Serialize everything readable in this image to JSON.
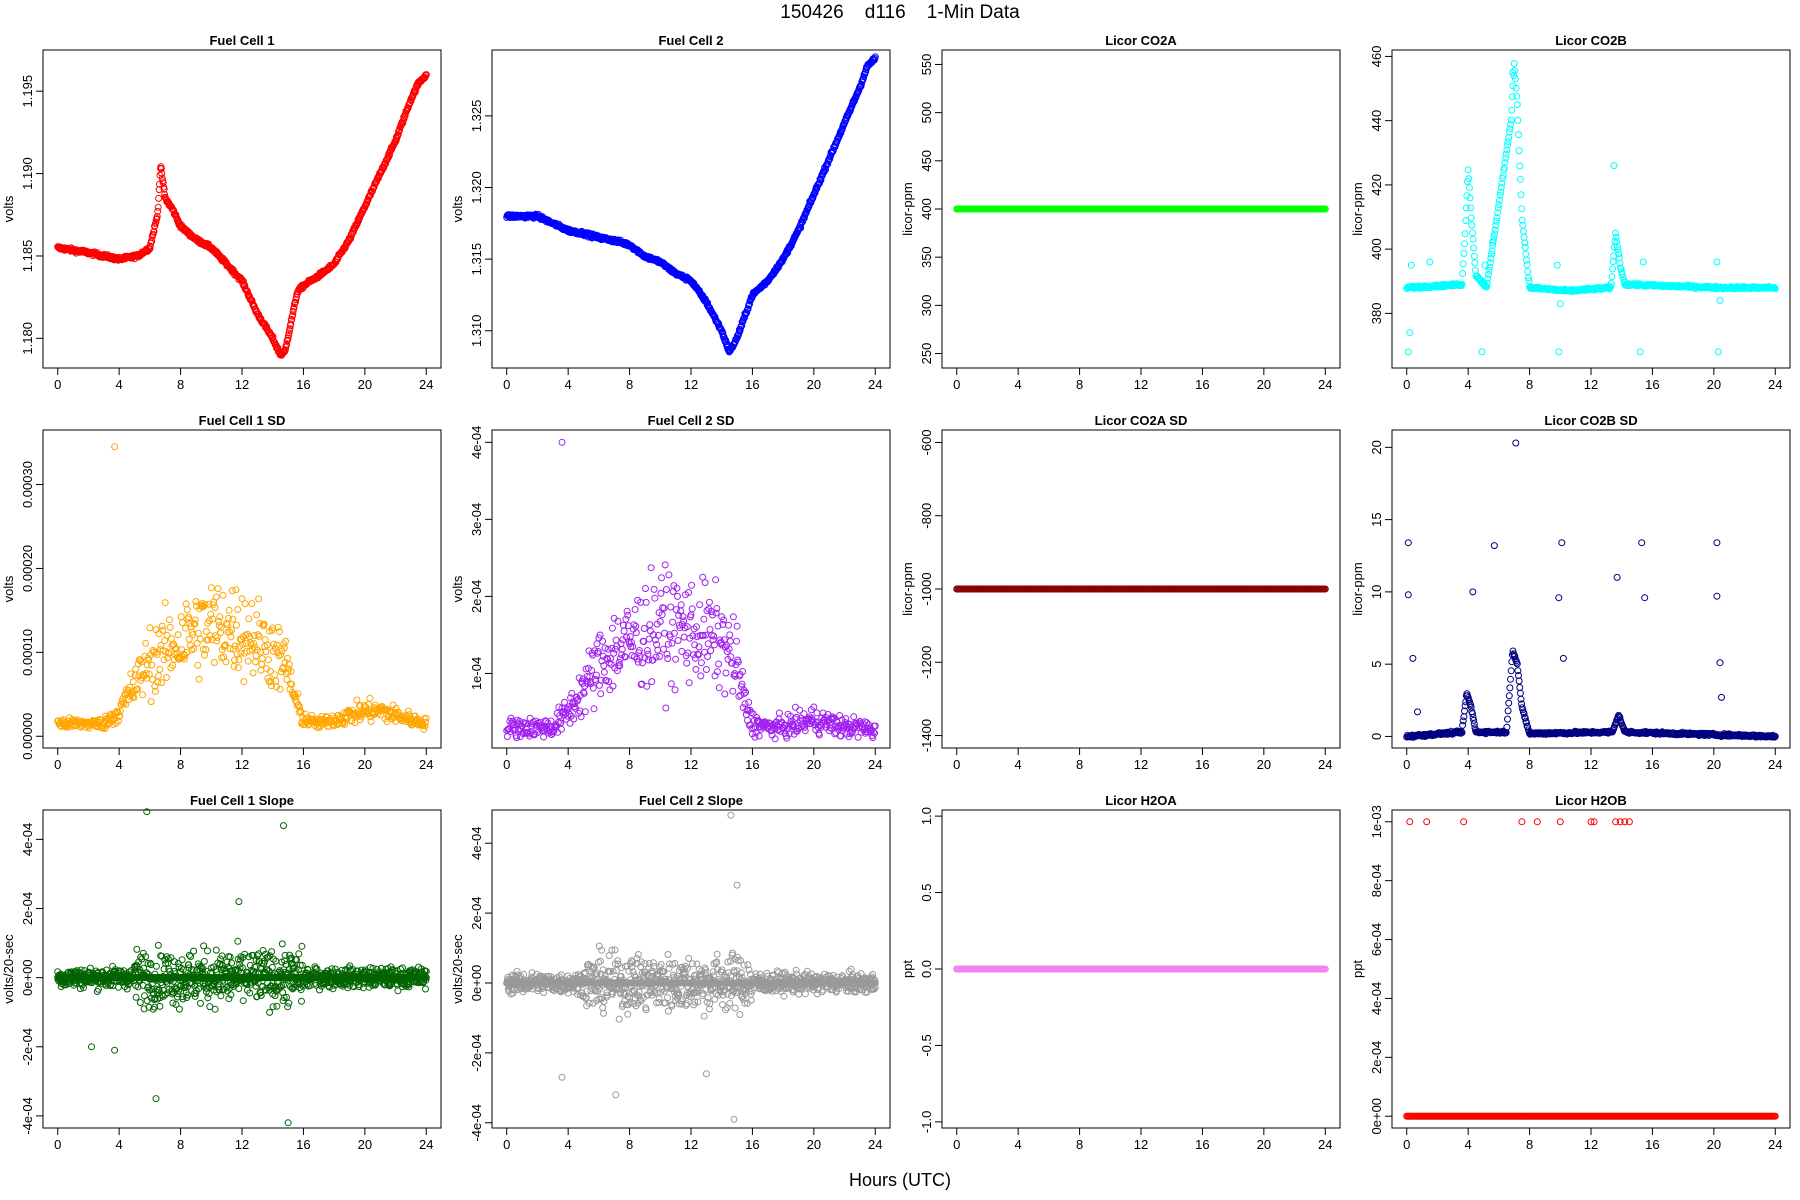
{
  "figure": {
    "title": "150426    d116    1-Min Data",
    "xlabel": "Hours (UTC)"
  },
  "chart_data": [
    {
      "type": "scatter",
      "title": "Fuel Cell 1",
      "ylabel": "volts",
      "color": "#ff0000",
      "xlim": [
        -0.96,
        24.96
      ],
      "ylim": [
        1.1782,
        1.1975
      ],
      "yticks": [
        1.18,
        1.185,
        1.19,
        1.195
      ],
      "ytick_labels": [
        "1.180",
        "1.185",
        "1.190",
        "1.195"
      ],
      "xticks": [
        0,
        4,
        8,
        12,
        16,
        20,
        24
      ],
      "series": [
        {
          "x": [
            0,
            2,
            4,
            5.2,
            6,
            6.5,
            6.7,
            7,
            7.5,
            8,
            9,
            10,
            11,
            12,
            13,
            14,
            14.5,
            14.8,
            15.2,
            15.6,
            16,
            17,
            18,
            19,
            20,
            21,
            22,
            23,
            23.5,
            24
          ],
          "y": [
            1.1855,
            1.1852,
            1.1848,
            1.185,
            1.1855,
            1.1875,
            1.1905,
            1.1885,
            1.1878,
            1.1868,
            1.186,
            1.1855,
            1.1845,
            1.1835,
            1.1815,
            1.18,
            1.179,
            1.1792,
            1.181,
            1.1828,
            1.1832,
            1.1838,
            1.1845,
            1.186,
            1.188,
            1.19,
            1.192,
            1.1945,
            1.1955,
            1.196
          ]
        }
      ]
    },
    {
      "type": "scatter",
      "title": "Fuel Cell 2",
      "ylabel": "volts",
      "color": "#0000ff",
      "xlim": [
        -0.96,
        24.96
      ],
      "ylim": [
        1.3074,
        1.3296
      ],
      "yticks": [
        1.31,
        1.315,
        1.32,
        1.325
      ],
      "ytick_labels": [
        "1.310",
        "1.315",
        "1.320",
        "1.325"
      ],
      "xticks": [
        0,
        4,
        8,
        12,
        16,
        20,
        24
      ],
      "series": [
        {
          "x": [
            0,
            2,
            3,
            4,
            5,
            6,
            7,
            8,
            9,
            10,
            11,
            12,
            13,
            14,
            14.5,
            15,
            15.5,
            16,
            17,
            18,
            19,
            20,
            21,
            22,
            23,
            23.5,
            24
          ],
          "y": [
            1.318,
            1.318,
            1.3175,
            1.317,
            1.3168,
            1.3165,
            1.3163,
            1.316,
            1.3152,
            1.3148,
            1.314,
            1.3135,
            1.312,
            1.31,
            1.3085,
            1.3095,
            1.311,
            1.3125,
            1.3135,
            1.315,
            1.317,
            1.3195,
            1.322,
            1.3245,
            1.327,
            1.3285,
            1.329
          ]
        }
      ]
    },
    {
      "type": "scatter",
      "title": "Licor CO2A",
      "ylabel": "licor-ppm",
      "color": "#00ff00",
      "xlim": [
        -0.96,
        24.96
      ],
      "ylim": [
        235,
        565
      ],
      "yticks": [
        250,
        300,
        350,
        400,
        450,
        500,
        550
      ],
      "ytick_labels": [
        "250",
        "300",
        "350",
        "400",
        "450",
        "500",
        "550"
      ],
      "xticks": [
        0,
        4,
        8,
        12,
        16,
        20,
        24
      ],
      "series": [
        {
          "x": [
            0,
            24
          ],
          "y": [
            400,
            400
          ]
        }
      ]
    },
    {
      "type": "scatter",
      "title": "Licor CO2B",
      "ylabel": "licor-ppm",
      "color": "#00ffff",
      "xlim": [
        -0.96,
        24.96
      ],
      "ylim": [
        363,
        462
      ],
      "yticks": [
        380,
        400,
        420,
        440,
        460
      ],
      "ytick_labels": [
        "380",
        "400",
        "420",
        "440",
        "460"
      ],
      "xticks": [
        0,
        4,
        8,
        12,
        16,
        20,
        24
      ],
      "series": [
        {
          "x": [
            0,
            3.6,
            3.8,
            4.0,
            4.2,
            4.5,
            5.2,
            6.8,
            7.0,
            7.2,
            7.5,
            8.0,
            10.5,
            13.3,
            13.6,
            13.9,
            14.2,
            20.3,
            24
          ],
          "y": [
            388,
            389,
            405,
            425,
            410,
            392,
            388,
            440,
            458,
            445,
            410,
            388,
            387,
            388,
            405,
            395,
            389,
            388,
            388
          ]
        }
      ]
    },
    {
      "type": "scatter",
      "title": "Fuel Cell 1 SD",
      "ylabel": "volts",
      "color": "#ffa500",
      "xlim": [
        -0.96,
        24.96
      ],
      "ylim": [
        -1.4e-05,
        0.000365
      ],
      "yticks": [
        0,
        0.0001,
        0.0002,
        0.0003
      ],
      "ytick_labels": [
        "0.00000",
        "0.00010",
        "0.00020",
        "0.00030"
      ],
      "xticks": [
        0,
        4,
        8,
        12,
        16,
        20,
        24
      ],
      "series": [
        {
          "x": [
            0,
            3,
            4,
            5,
            6,
            7,
            8,
            9,
            10,
            11,
            12,
            13,
            14,
            15,
            15.5,
            16,
            17,
            18,
            19,
            20,
            21,
            22,
            23,
            24
          ],
          "y": [
            1.5e-05,
            1.5e-05,
            3e-05,
            6e-05,
            9e-05,
            0.0001,
            0.000115,
            0.000125,
            0.00013,
            0.00013,
            0.000125,
            0.000115,
            0.0001,
            8e-05,
            4e-05,
            2e-05,
            1.5e-05,
            2e-05,
            2.5e-05,
            3e-05,
            3e-05,
            2.5e-05,
            2e-05,
            1.5e-05
          ]
        }
      ]
    },
    {
      "type": "scatter",
      "title": "Fuel Cell 2 SD",
      "ylabel": "volts",
      "color": "#a020f0",
      "xlim": [
        -0.96,
        24.96
      ],
      "ylim": [
        3.2e-06,
        0.000416
      ],
      "yticks": [
        0.0001,
        0.0002,
        0.0003,
        0.0004
      ],
      "ytick_labels": [
        "1e-04",
        "2e-04",
        "3e-04",
        "4e-04"
      ],
      "xticks": [
        0,
        4,
        8,
        12,
        16,
        20,
        24
      ],
      "series": [
        {
          "x": [
            0,
            3,
            4,
            5,
            6,
            7,
            8,
            9,
            10,
            11,
            12,
            13,
            14,
            15,
            15.5,
            16,
            17,
            18,
            19,
            20,
            21,
            22,
            23,
            24
          ],
          "y": [
            3e-05,
            3e-05,
            5e-05,
            8e-05,
            0.00011,
            0.00013,
            0.00014,
            0.00015,
            0.00016,
            0.00016,
            0.000155,
            0.00015,
            0.00014,
            0.00011,
            6e-05,
            3.5e-05,
            3e-05,
            3e-05,
            3.5e-05,
            4e-05,
            3.5e-05,
            3e-05,
            3e-05,
            2.5e-05
          ]
        }
      ]
    },
    {
      "type": "scatter",
      "title": "Licor CO2A SD",
      "ylabel": "licor-ppm",
      "color": "#8b0000",
      "xlim": [
        -0.96,
        24.96
      ],
      "ylim": [
        -1434,
        -566
      ],
      "yticks": [
        -1400,
        -1200,
        -1000,
        -800,
        -600
      ],
      "ytick_labels": [
        "-1400",
        "-1200",
        "-1000",
        "-800",
        "-600"
      ],
      "xticks": [
        0,
        4,
        8,
        12,
        16,
        20,
        24
      ],
      "series": [
        {
          "x": [
            0,
            24
          ],
          "y": [
            -1000,
            -1000
          ]
        }
      ]
    },
    {
      "type": "scatter",
      "title": "Licor CO2B SD",
      "ylabel": "licor-ppm",
      "color": "#000080",
      "xlim": [
        -0.96,
        24.96
      ],
      "ylim": [
        -0.8,
        21.2
      ],
      "yticks": [
        0,
        5,
        10,
        15,
        20
      ],
      "ytick_labels": [
        "0",
        "5",
        "10",
        "15",
        "20"
      ],
      "xticks": [
        0,
        4,
        8,
        12,
        16,
        20,
        24
      ],
      "series": [
        {
          "x": [
            0,
            3.6,
            3.9,
            4.2,
            4.5,
            6.5,
            6.9,
            7.2,
            7.5,
            8,
            13.4,
            13.8,
            14.2,
            24
          ],
          "y": [
            0,
            0.3,
            3,
            2,
            0.3,
            0.3,
            6,
            5,
            2,
            0.2,
            0.3,
            1.5,
            0.3,
            0
          ]
        }
      ]
    },
    {
      "type": "scatter",
      "title": "Fuel Cell 1 Slope",
      "ylabel": "volts/20-sec",
      "color": "#006400",
      "xlim": [
        -0.96,
        24.96
      ],
      "ylim": [
        -0.000435,
        0.000485
      ],
      "yticks": [
        -0.0004,
        -0.0002,
        0,
        0.0002,
        0.0004
      ],
      "ytick_labels": [
        "-4e-04",
        "-2e-04",
        "0e+00",
        "2e-04",
        "4e-04"
      ],
      "xticks": [
        0,
        4,
        8,
        12,
        16,
        20,
        24
      ],
      "series": [
        {
          "x": [
            0,
            24
          ],
          "y": [
            0,
            0
          ]
        }
      ]
    },
    {
      "type": "scatter",
      "title": "Fuel Cell 2 Slope",
      "ylabel": "volts/20-sec",
      "color": "#999999",
      "xlim": [
        -0.96,
        24.96
      ],
      "ylim": [
        -0.000415,
        0.000495
      ],
      "yticks": [
        -0.0004,
        -0.0002,
        0,
        0.0002,
        0.0004
      ],
      "ytick_labels": [
        "-4e-04",
        "-2e-04",
        "0e+00",
        "2e-04",
        "4e-04"
      ],
      "xticks": [
        0,
        4,
        8,
        12,
        16,
        20,
        24
      ],
      "series": [
        {
          "x": [
            0,
            24
          ],
          "y": [
            0,
            0
          ]
        }
      ]
    },
    {
      "type": "scatter",
      "title": "Licor H2OA",
      "ylabel": "ppt",
      "color": "#ee82ee",
      "xlim": [
        -0.96,
        24.96
      ],
      "ylim": [
        -1.04,
        1.04
      ],
      "yticks": [
        -1.0,
        -0.5,
        0.0,
        0.5,
        1.0
      ],
      "ytick_labels": [
        "-1.0",
        "-0.5",
        "0.0",
        "0.5",
        "1.0"
      ],
      "xticks": [
        0,
        4,
        8,
        12,
        16,
        20,
        24
      ],
      "series": [
        {
          "x": [
            0,
            24
          ],
          "y": [
            0,
            0
          ]
        }
      ]
    },
    {
      "type": "scatter",
      "title": "Licor H2OB",
      "ylabel": "ppt",
      "color": "#ff0000",
      "xlim": [
        -0.96,
        24.96
      ],
      "ylim": [
        -4e-05,
        0.00104
      ],
      "yticks": [
        0,
        0.0002,
        0.0004,
        0.0006,
        0.0008,
        0.001
      ],
      "ytick_labels": [
        "0e+00",
        "2e-04",
        "4e-04",
        "6e-04",
        "8e-04",
        "1e-03"
      ],
      "xticks": [
        0,
        4,
        8,
        12,
        16,
        20,
        24
      ],
      "series": [
        {
          "x": [
            0,
            24
          ],
          "y": [
            0,
            0
          ]
        },
        {
          "x": [
            0.2,
            1.3,
            3.7,
            7.5,
            8.5,
            10,
            12,
            12.2,
            13.6,
            13.9,
            14.2,
            14.5
          ],
          "y": [
            0.001,
            0.001,
            0.001,
            0.001,
            0.001,
            0.001,
            0.001,
            0.001,
            0.001,
            0.001,
            0.001,
            0.001
          ]
        }
      ]
    }
  ]
}
